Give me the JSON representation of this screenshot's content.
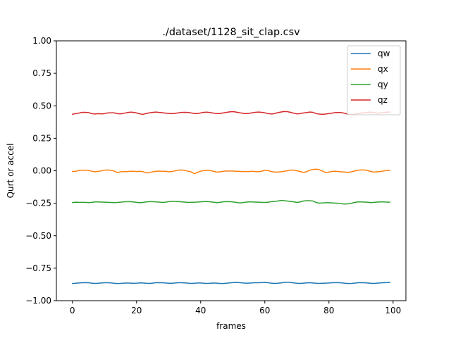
{
  "chart_data": {
    "type": "line",
    "title": "./dataset/1128_sit_clap.csv",
    "xlabel": "frames",
    "ylabel": "Qurt or accel",
    "xlim": [
      -5,
      104
    ],
    "ylim": [
      -1.0,
      1.0
    ],
    "xticks": [
      0,
      20,
      40,
      60,
      80,
      100
    ],
    "xtick_labels": [
      "0",
      "20",
      "40",
      "60",
      "80",
      "100"
    ],
    "yticks": [
      -1.0,
      -0.75,
      -0.5,
      -0.25,
      0.0,
      0.25,
      0.5,
      0.75,
      1.0
    ],
    "ytick_labels": [
      "−1.00",
      "−0.75",
      "−0.50",
      "−0.25",
      "0.00",
      "0.25",
      "0.50",
      "0.75",
      "1.00"
    ],
    "grid": false,
    "legend_position": "top-right",
    "x": [
      0,
      1,
      2,
      3,
      4,
      5,
      6,
      7,
      8,
      9,
      10,
      11,
      12,
      13,
      14,
      15,
      16,
      17,
      18,
      19,
      20,
      21,
      22,
      23,
      24,
      25,
      26,
      27,
      28,
      29,
      30,
      31,
      32,
      33,
      34,
      35,
      36,
      37,
      38,
      39,
      40,
      41,
      42,
      43,
      44,
      45,
      46,
      47,
      48,
      49,
      50,
      51,
      52,
      53,
      54,
      55,
      56,
      57,
      58,
      59,
      60,
      61,
      62,
      63,
      64,
      65,
      66,
      67,
      68,
      69,
      70,
      71,
      72,
      73,
      74,
      75,
      76,
      77,
      78,
      79,
      80,
      81,
      82,
      83,
      84,
      85,
      86,
      87,
      88,
      89,
      90,
      91,
      92,
      93,
      94,
      95,
      96,
      97,
      98,
      99
    ],
    "series": [
      {
        "name": "qw",
        "color": "#1f77b4",
        "values": [
          -0.868,
          -0.866,
          -0.864,
          -0.862,
          -0.861,
          -0.862,
          -0.865,
          -0.867,
          -0.866,
          -0.864,
          -0.862,
          -0.862,
          -0.863,
          -0.866,
          -0.868,
          -0.867,
          -0.865,
          -0.864,
          -0.865,
          -0.866,
          -0.865,
          -0.863,
          -0.864,
          -0.866,
          -0.867,
          -0.865,
          -0.862,
          -0.861,
          -0.862,
          -0.864,
          -0.866,
          -0.866,
          -0.864,
          -0.862,
          -0.862,
          -0.863,
          -0.865,
          -0.867,
          -0.866,
          -0.864,
          -0.864,
          -0.866,
          -0.867,
          -0.866,
          -0.864,
          -0.865,
          -0.867,
          -0.868,
          -0.866,
          -0.863,
          -0.861,
          -0.86,
          -0.861,
          -0.863,
          -0.865,
          -0.865,
          -0.863,
          -0.862,
          -0.862,
          -0.861,
          -0.86,
          -0.862,
          -0.865,
          -0.867,
          -0.866,
          -0.863,
          -0.86,
          -0.858,
          -0.86,
          -0.863,
          -0.866,
          -0.867,
          -0.865,
          -0.863,
          -0.862,
          -0.864,
          -0.866,
          -0.867,
          -0.866,
          -0.865,
          -0.864,
          -0.862,
          -0.861,
          -0.861,
          -0.863,
          -0.866,
          -0.868,
          -0.867,
          -0.865,
          -0.862,
          -0.861,
          -0.862,
          -0.864,
          -0.866,
          -0.867,
          -0.865,
          -0.863,
          -0.862,
          -0.861,
          -0.86
        ]
      },
      {
        "name": "qx",
        "color": "#ff7f0e",
        "values": [
          -0.005,
          -0.005,
          0.002,
          0.005,
          0.004,
          0.002,
          -0.003,
          -0.008,
          -0.005,
          -0.001,
          0.004,
          0.006,
          0.003,
          -0.002,
          -0.014,
          -0.008,
          -0.006,
          -0.006,
          -0.004,
          -0.004,
          -0.006,
          -0.004,
          -0.007,
          -0.016,
          -0.014,
          -0.008,
          -0.005,
          -0.003,
          -0.004,
          -0.004,
          -0.008,
          -0.006,
          -0.001,
          0.004,
          0.006,
          0.003,
          -0.003,
          -0.008,
          -0.023,
          -0.012,
          -0.003,
          0.002,
          0.004,
          0.002,
          -0.004,
          -0.01,
          -0.008,
          -0.004,
          -0.002,
          -0.002,
          -0.002,
          -0.004,
          -0.005,
          -0.006,
          -0.006,
          -0.006,
          -0.004,
          -0.006,
          -0.007,
          -0.004,
          0.004,
          0.002,
          -0.006,
          -0.01,
          -0.01,
          -0.008,
          -0.005,
          0.0,
          0.005,
          0.005,
          0.0,
          -0.006,
          -0.012,
          -0.008,
          0.004,
          0.01,
          0.012,
          0.008,
          -0.002,
          -0.015,
          -0.01,
          -0.005,
          -0.004,
          -0.006,
          -0.008,
          -0.01,
          -0.012,
          -0.008,
          -0.002,
          0.004,
          0.006,
          0.006,
          0.002,
          -0.006,
          -0.01,
          -0.008,
          -0.006,
          -0.002,
          0.003,
          0.003
        ]
      },
      {
        "name": "qy",
        "color": "#2ca02c",
        "values": [
          -0.245,
          -0.242,
          -0.243,
          -0.243,
          -0.243,
          -0.245,
          -0.243,
          -0.24,
          -0.24,
          -0.241,
          -0.242,
          -0.243,
          -0.244,
          -0.245,
          -0.244,
          -0.242,
          -0.239,
          -0.238,
          -0.238,
          -0.24,
          -0.243,
          -0.246,
          -0.244,
          -0.24,
          -0.238,
          -0.238,
          -0.239,
          -0.241,
          -0.244,
          -0.242,
          -0.238,
          -0.236,
          -0.236,
          -0.237,
          -0.239,
          -0.241,
          -0.243,
          -0.243,
          -0.242,
          -0.241,
          -0.239,
          -0.237,
          -0.237,
          -0.239,
          -0.242,
          -0.245,
          -0.243,
          -0.239,
          -0.237,
          -0.238,
          -0.24,
          -0.243,
          -0.247,
          -0.246,
          -0.242,
          -0.24,
          -0.24,
          -0.241,
          -0.242,
          -0.243,
          -0.244,
          -0.242,
          -0.238,
          -0.236,
          -0.233,
          -0.228,
          -0.23,
          -0.233,
          -0.236,
          -0.239,
          -0.244,
          -0.24,
          -0.233,
          -0.23,
          -0.231,
          -0.233,
          -0.244,
          -0.249,
          -0.248,
          -0.246,
          -0.246,
          -0.247,
          -0.249,
          -0.251,
          -0.254,
          -0.256,
          -0.254,
          -0.25,
          -0.244,
          -0.24,
          -0.24,
          -0.241,
          -0.242,
          -0.245,
          -0.243,
          -0.241,
          -0.24,
          -0.24,
          -0.241,
          -0.242
        ]
      },
      {
        "name": "qz",
        "color": "#d62728",
        "values": [
          0.435,
          0.44,
          0.444,
          0.449,
          0.45,
          0.448,
          0.44,
          0.437,
          0.44,
          0.438,
          0.44,
          0.445,
          0.446,
          0.446,
          0.44,
          0.438,
          0.442,
          0.447,
          0.451,
          0.45,
          0.445,
          0.438,
          0.434,
          0.441,
          0.446,
          0.449,
          0.452,
          0.449,
          0.447,
          0.444,
          0.441,
          0.44,
          0.442,
          0.446,
          0.449,
          0.45,
          0.449,
          0.445,
          0.441,
          0.44,
          0.445,
          0.45,
          0.451,
          0.448,
          0.444,
          0.44,
          0.441,
          0.445,
          0.449,
          0.453,
          0.455,
          0.452,
          0.447,
          0.443,
          0.44,
          0.442,
          0.446,
          0.45,
          0.452,
          0.45,
          0.446,
          0.44,
          0.437,
          0.44,
          0.447,
          0.452,
          0.456,
          0.455,
          0.45,
          0.443,
          0.438,
          0.44,
          0.445,
          0.448,
          0.452,
          0.45,
          0.44,
          0.436,
          0.434,
          0.437,
          0.44,
          0.444,
          0.448,
          0.449,
          0.447,
          0.442,
          0.435,
          0.432,
          0.436,
          0.44,
          0.443,
          0.447,
          0.45,
          0.451,
          0.449,
          0.444,
          0.445,
          0.448,
          0.451,
          0.452
        ]
      }
    ]
  }
}
